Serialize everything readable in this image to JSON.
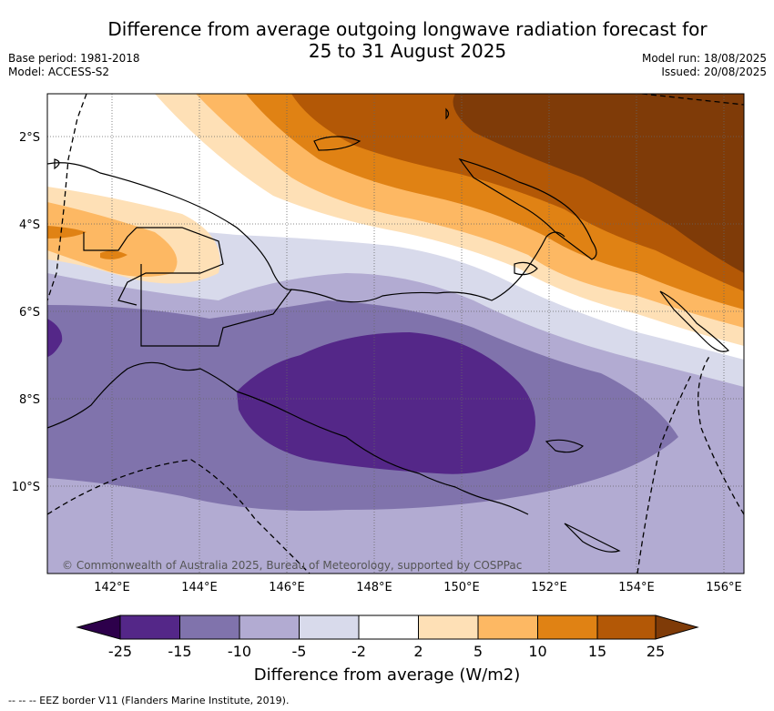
{
  "title_line1": "Difference from average outgoing longwave radiation forecast for",
  "title_line2": "25 to 31 August 2025",
  "meta_left": {
    "base_period": "Base period: 1981-2018",
    "model": "Model: ACCESS-S2"
  },
  "meta_right": {
    "model_run": "Model run: 18/08/2025",
    "issued": "Issued: 20/08/2025"
  },
  "map": {
    "lon_labels": [
      "142°E",
      "144°E",
      "146°E",
      "148°E",
      "150°E",
      "152°E",
      "154°E",
      "156°E"
    ],
    "lat_labels": [
      "2°S",
      "4°S",
      "6°S",
      "8°S",
      "10°S"
    ],
    "attribution": "© Commonwealth of Australia 2025, Bureau of Meteorology, supported by COSPPac",
    "colors": {
      "lt_neg25": "#2d004b",
      "neg25_neg15": "#542788",
      "neg15_neg10": "#8073ac",
      "neg10_neg5": "#b2abd2",
      "neg5_neg2": "#d8daeb",
      "neg2_2": "#ffffff",
      "p2_5": "#fee0b6",
      "p5_10": "#fdb863",
      "p10_15": "#e08214",
      "p15_25": "#b35806",
      "gt25": "#7f3b08"
    }
  },
  "colorbar": {
    "ticks": [
      "-25",
      "-15",
      "-10",
      "-5",
      "-2",
      "2",
      "5",
      "10",
      "15",
      "25"
    ],
    "title": "Difference from average (W/m2)"
  },
  "footer": "-- -- -- EEZ border V11 (Flanders Marine Institute, 2019)."
}
